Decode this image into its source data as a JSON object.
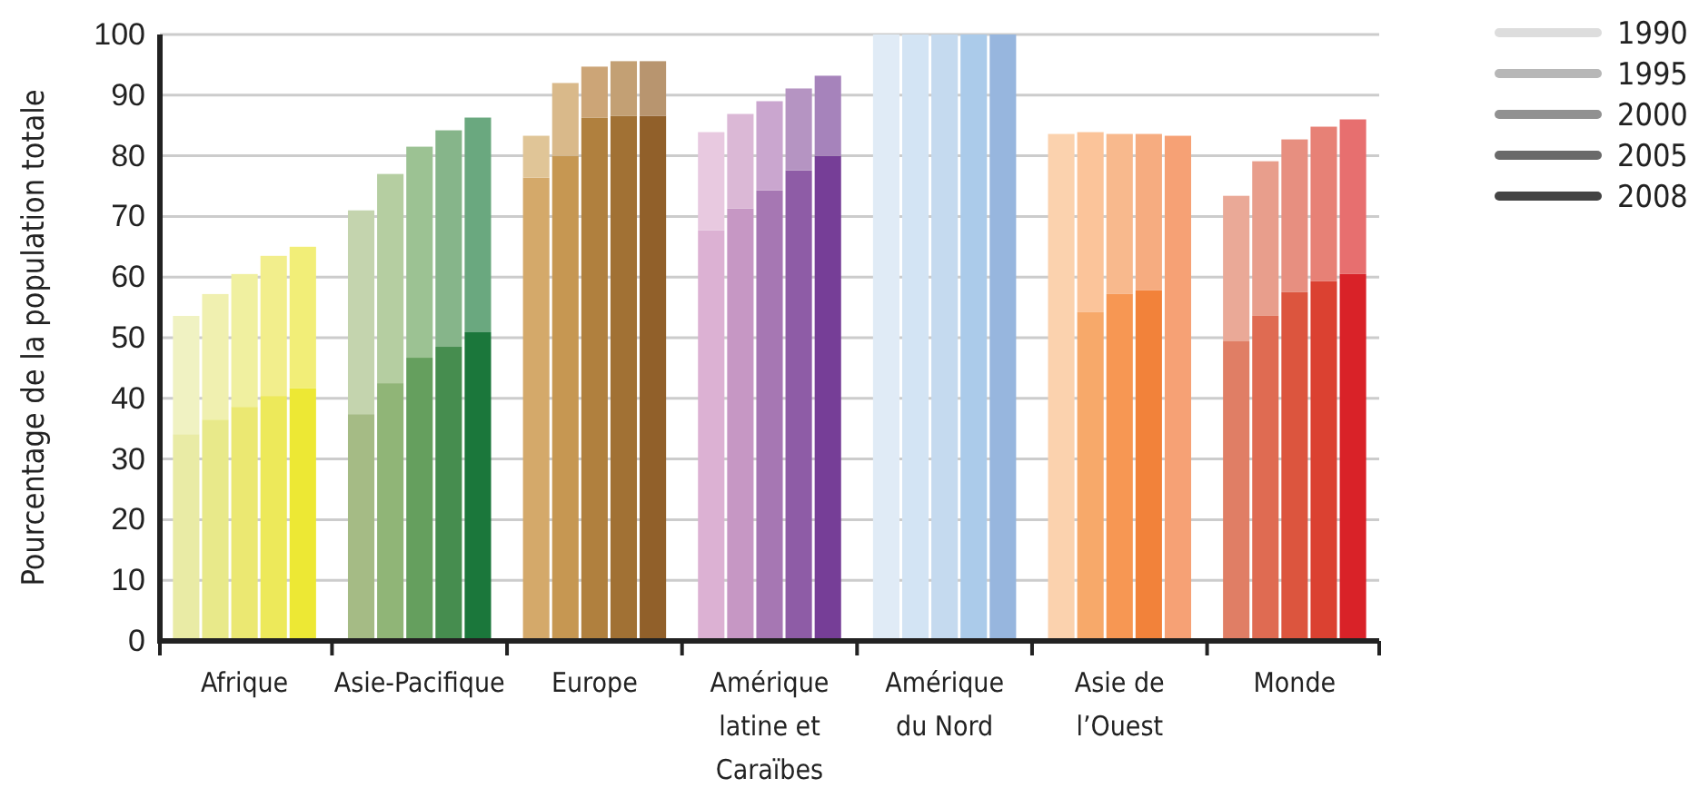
{
  "chart_data": {
    "type": "bar",
    "stacked": true,
    "ylabel": "Pourcentage de la population totale",
    "categories": [
      null,
      null,
      "Afrique",
      null,
      null,
      null,
      null,
      null,
      "Asie-Pacifique",
      null,
      null,
      null,
      null,
      null,
      "Europe",
      null,
      null,
      null,
      null,
      null,
      "Amérique latine et Caraïbes",
      null,
      null,
      null,
      null,
      null,
      "Amérique du Nord",
      null,
      null,
      null,
      null,
      null,
      "Asie de l’Ouest",
      null,
      null,
      null,
      null,
      null,
      "Monde",
      null,
      null
    ],
    "ylim": [
      0,
      100
    ],
    "yticks": [
      0,
      10,
      20,
      30,
      40,
      50,
      60,
      70,
      80,
      90,
      100
    ],
    "grid": "y",
    "annotations": [
      "1990",
      "1995",
      "2000",
      "2005",
      "2008"
    ],
    "series": [
      {
        "values": [
          34.1,
          36.5,
          38.6,
          40.4,
          41.7,
          null,
          37.4,
          42.5,
          46.7,
          48.5,
          50.9,
          null,
          76.4,
          80,
          86.3,
          86.6,
          86.6,
          null,
          67.7,
          71.3,
          74.3,
          77.6,
          80,
          null,
          100,
          100,
          100,
          100,
          100,
          null,
          83.6,
          54.2,
          57.2,
          57.8,
          83.3,
          null,
          49.4,
          53.6,
          57.5,
          59.3,
          60.5
        ],
        "colors": [
          "#e9eba5",
          "#e8e98a",
          "#ebe872",
          "#ede95a",
          "#ede834",
          null,
          "#a5bb85",
          "#90b577",
          "#659f5e",
          "#468d4f",
          "#1b773b",
          null,
          "#d4a96a",
          "#c69752",
          "#b0803e",
          "#a17134",
          "#91602a",
          null,
          "#dcb1d3",
          "#c697c4",
          "#a677b3",
          "#8e5ca6",
          "#763e97",
          null,
          "#e0ebf6",
          "#d3e4f4",
          "#c5daef",
          "#abcbea",
          "#97b6de",
          null,
          "#fbd2ae",
          "#f7a96a",
          "#f79753",
          "#f2823a",
          "#f6a175",
          null,
          "#e07e65",
          "#df6b52",
          "#dc553e",
          "#db4131",
          "#d92228"
        ]
      },
      {
        "values": [
          19.5,
          20.7,
          21.9,
          23.1,
          23.3,
          null,
          33.6,
          34.5,
          34.8,
          35.7,
          35.4,
          null,
          6.9,
          12,
          8.4,
          9,
          9,
          null,
          16.2,
          15.6,
          14.7,
          13.5,
          13.2,
          null,
          0,
          0,
          0,
          0,
          0,
          null,
          0,
          29.7,
          26.4,
          25.8,
          0,
          null,
          24,
          25.5,
          25.2,
          25.5,
          25.5
        ],
        "colors": [
          "#f0f2c2",
          "#f0f0b0",
          "#f0f0a0",
          "#f2ee8c",
          "#f2ee78",
          null,
          "#c4d4ae",
          "#b5cea1",
          "#9cc293",
          "#86b58a",
          "#6aa87f",
          null,
          "#e0c597",
          "#d9b98a",
          "#cca577",
          "#c3a074",
          "#b8956f",
          null,
          "#e8c9e0",
          "#dbb8d6",
          "#caa6cf",
          "#b594c2",
          "#a683bb",
          null,
          "#e0ebf6",
          "#d3e4f4",
          "#c5daef",
          "#abcbea",
          "#97b6de",
          null,
          "#fbd2ae",
          "#fbc49a",
          "#f8b98d",
          "#f6ac80",
          "#f6a175",
          null,
          "#eaa997",
          "#e89e8c",
          "#e78f80",
          "#e78176",
          "#e76f6f"
        ]
      }
    ]
  }
}
